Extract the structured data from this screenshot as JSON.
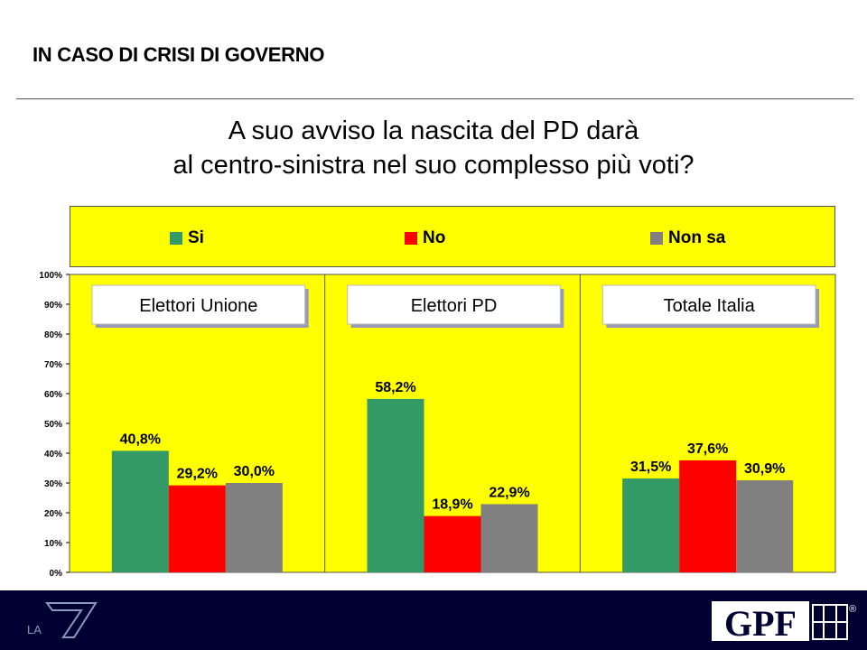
{
  "header": {
    "title": "IN CASO DI CRISI DI GOVERNO"
  },
  "question": {
    "line1": "A suo avviso la nascita del PD darà",
    "line2": "al centro-sinistra nel suo complesso più voti?"
  },
  "legend": [
    {
      "label": "Si",
      "color": "#339966"
    },
    {
      "label": "No",
      "color": "#ff0000"
    },
    {
      "label": "Non sa",
      "color": "#808080"
    }
  ],
  "chart_data": {
    "type": "bar",
    "ylim": [
      0,
      100
    ],
    "y_ticks": [
      "0%",
      "10%",
      "20%",
      "30%",
      "40%",
      "50%",
      "60%",
      "70%",
      "80%",
      "90%",
      "100%"
    ],
    "grid": false,
    "groups": [
      {
        "label": "Elettori Unione",
        "values": [
          40.8,
          29.2,
          30.0
        ],
        "labels": [
          "40,8%",
          "29,2%",
          "30,0%"
        ]
      },
      {
        "label": "Elettori PD",
        "values": [
          58.2,
          18.9,
          22.9
        ],
        "labels": [
          "58,2%",
          "18,9%",
          "22,9%"
        ]
      },
      {
        "label": "Totale Italia",
        "values": [
          31.5,
          37.6,
          30.9
        ],
        "labels": [
          "31,5%",
          "37,6%",
          "30,9%"
        ]
      }
    ],
    "series": [
      {
        "name": "Si",
        "color": "#339966"
      },
      {
        "name": "No",
        "color": "#ff0000"
      },
      {
        "name": "Non sa",
        "color": "#808080"
      }
    ],
    "background": "#ffff00"
  },
  "footer": {
    "left_logo": "LA",
    "right_logo": "GPF",
    "registered": "®"
  }
}
